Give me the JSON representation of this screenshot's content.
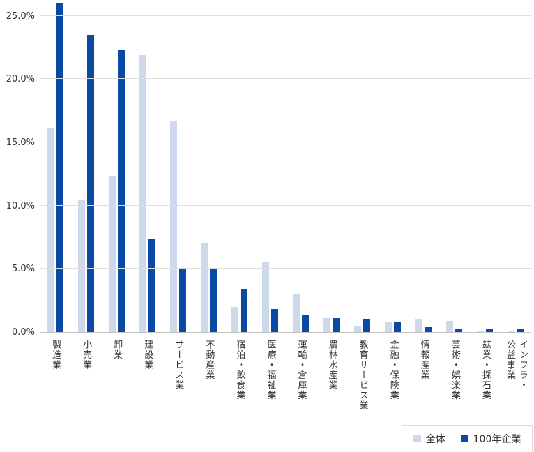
{
  "chart_data": {
    "type": "bar",
    "title": "",
    "xlabel": "",
    "ylabel": "",
    "categories": [
      "製造業",
      "小売業",
      "卸業",
      "建設業",
      "サービス業",
      "不動産業",
      "宿泊・飲食業",
      "医療・福祉業",
      "運輸・倉庫業",
      "農林水産業",
      "教育サービス業",
      "金融・保険業",
      "情報産業",
      "芸術・娯楽業",
      "鉱業・採石業",
      "インフラ・\n公益事業"
    ],
    "series": [
      {
        "id": "overall",
        "name": "全体",
        "color": "#CCD9EB",
        "values": [
          16.1,
          10.4,
          12.3,
          21.9,
          16.7,
          7.0,
          2.0,
          5.5,
          3.0,
          1.1,
          0.5,
          0.8,
          1.0,
          0.9,
          0.1,
          0.1
        ]
      },
      {
        "id": "century",
        "name": "100年企業",
        "color": "#0A4AA5",
        "values": [
          26.0,
          23.5,
          22.3,
          7.4,
          5.1,
          5.0,
          3.4,
          1.8,
          1.4,
          1.1,
          1.0,
          0.8,
          0.4,
          0.2,
          0.2,
          0.2
        ]
      }
    ],
    "y_ticks": [
      {
        "label": "0.0%",
        "value": 0
      },
      {
        "label": "5.0%",
        "value": 5
      },
      {
        "label": "10.0%",
        "value": 10
      },
      {
        "label": "15.0%",
        "value": 15
      },
      {
        "label": "20.0%",
        "value": 20
      },
      {
        "label": "25.0%",
        "value": 25
      }
    ],
    "ylim": [
      0,
      26.3
    ],
    "grid": true,
    "legend_position": "bottom-right",
    "legend_items": [
      "全体",
      "100年企業"
    ]
  },
  "style": {
    "background": "#FFFFFF",
    "grid_color": "#DEDEDE",
    "axis_line_color": "#C6C6C6",
    "text_color": "#333333",
    "legend_border_color": "#D9D9D9",
    "series_colors": {
      "全体": "#CCD9EB",
      "100年企業": "#0A4AA5"
    }
  }
}
